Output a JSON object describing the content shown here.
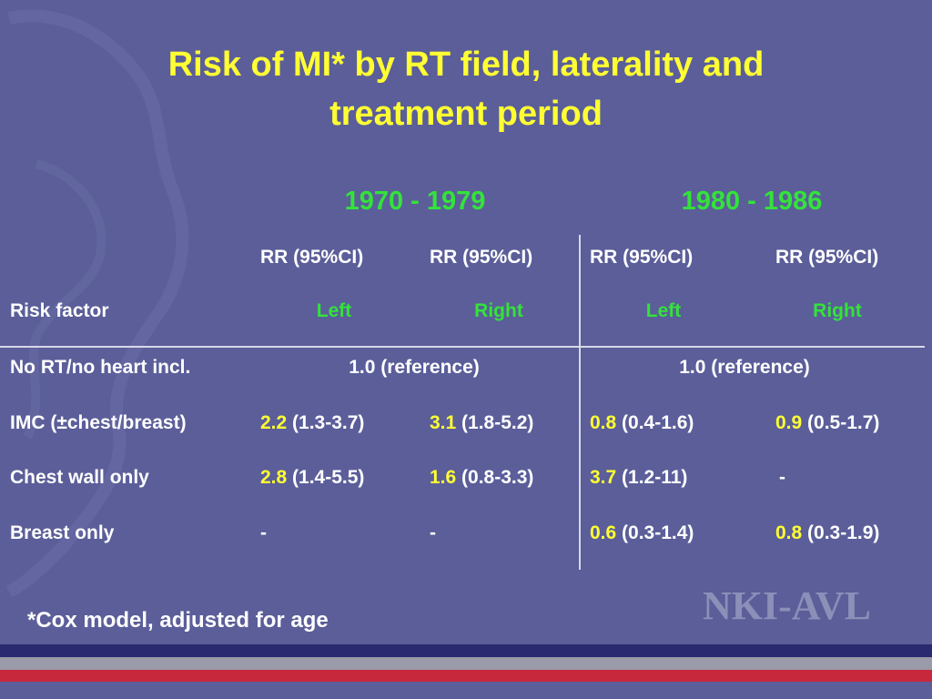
{
  "title_line1": "Risk of MI* by RT field, laterality and",
  "title_line2": "treatment period",
  "periods": [
    "1970 - 1979",
    "1980 - 1986"
  ],
  "measure_headers": [
    "RR (95%CI)",
    "RR (95%CI)",
    "RR (95%CI)",
    "RR (95%CI)"
  ],
  "risk_factor_label": "Risk factor",
  "sides": [
    "Left",
    "Right",
    "Left",
    "Right"
  ],
  "rows": [
    {
      "label": "No RT/no heart incl.",
      "reference_1970": "1.0 (reference)",
      "reference_1980": "1.0 (reference)"
    },
    {
      "label": "IMC (±chest/breast)",
      "cells": [
        {
          "rr": "2.2",
          "ci": " (1.3-3.7)"
        },
        {
          "rr": "3.1",
          "ci": " (1.8-5.2)"
        },
        {
          "rr": "0.8",
          "ci": " (0.4-1.6)"
        },
        {
          "rr": "0.9",
          "ci": " (0.5-1.7)"
        }
      ]
    },
    {
      "label": "Chest wall only",
      "cells": [
        {
          "rr": "2.8",
          "ci": " (1.4-5.5)"
        },
        {
          "rr": "1.6",
          "ci": " (0.8-3.3)"
        },
        {
          "rr": "3.7",
          "ci": " (1.2-11)"
        },
        {
          "rr": "",
          "ci": "-"
        }
      ]
    },
    {
      "label": "Breast only",
      "cells": [
        {
          "rr": "",
          "ci": "-"
        },
        {
          "rr": "",
          "ci": "-"
        },
        {
          "rr": "0.6",
          "ci": " (0.3-1.4)"
        },
        {
          "rr": "0.8",
          "ci": " (0.3-1.9)"
        }
      ]
    }
  ],
  "footnote": "*Cox model, adjusted for age",
  "logo_text": "NKI-AVL",
  "colors": {
    "background": "#5b5e99",
    "title": "#ffff33",
    "period": "#33e33a",
    "rr_value": "#ffff33",
    "text": "#ffffff",
    "stripe_dark": "#2a2a70",
    "stripe_grey": "#9a9aa8",
    "stripe_red": "#c8283c"
  }
}
